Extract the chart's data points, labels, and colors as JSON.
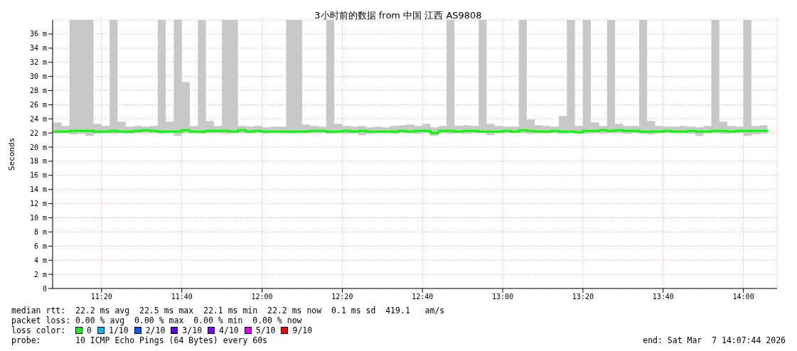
{
  "chart_data": {
    "type": "step",
    "title": "3小时前的数据 from 中国 江西 AS9808",
    "ylabel": "Seconds",
    "x": [
      11.1333,
      11.1667,
      11.2,
      11.2333,
      11.2667,
      11.3,
      11.3333,
      11.3667,
      11.4,
      11.4333,
      11.4667,
      11.5,
      11.5333,
      11.5667,
      11.6,
      11.6333,
      11.6667,
      11.7,
      11.7333,
      11.7667,
      11.8,
      11.8333,
      11.8667,
      11.9,
      11.9333,
      11.9667,
      12.0,
      12.0333,
      12.0667,
      12.1,
      12.1333,
      12.1667,
      12.2,
      12.2333,
      12.2667,
      12.3,
      12.3333,
      12.3667,
      12.4,
      12.4333,
      12.4667,
      12.5,
      12.5333,
      12.5667,
      12.6,
      12.6333,
      12.6667,
      12.7,
      12.7333,
      12.7667,
      12.8,
      12.8333,
      12.8667,
      12.9,
      12.9333,
      12.9667,
      13.0,
      13.0333,
      13.0667,
      13.1,
      13.1333,
      13.1667,
      13.2,
      13.2333,
      13.2667,
      13.3,
      13.3333,
      13.3667,
      13.4,
      13.4333,
      13.4667,
      13.5,
      13.5333,
      13.5667,
      13.6,
      13.6333,
      13.6667,
      13.7,
      13.7333,
      13.7667,
      13.8,
      13.8333,
      13.8667,
      13.9,
      13.9333,
      13.9667,
      14.0,
      14.0333,
      14.0667,
      14.1
    ],
    "series": [
      {
        "name": "0",
        "color": "#00ff00",
        "values": [
          22.2,
          22.2,
          22.3,
          22.3,
          22.3,
          22.2,
          22.2,
          22.3,
          22.2,
          22.2,
          22.3,
          22.4,
          22.3,
          22.2,
          22.2,
          22.2,
          22.4,
          22.2,
          22.2,
          22.3,
          22.3,
          22.3,
          22.2,
          22.4,
          22.2,
          22.3,
          22.2,
          22.2,
          22.2,
          22.2,
          22.2,
          22.2,
          22.3,
          22.3,
          22.2,
          22.2,
          22.3,
          22.2,
          22.3,
          22.2,
          22.2,
          22.2,
          22.2,
          22.3,
          22.2,
          22.3,
          22.3,
          22.0,
          22.3,
          22.3,
          22.2,
          22.3,
          22.3,
          22.2,
          22.2,
          22.2,
          22.3,
          22.2,
          22.4,
          22.3,
          22.2,
          22.2,
          22.3,
          22.2,
          22.2,
          22.1,
          22.3,
          22.3,
          22.4,
          22.3,
          22.4,
          22.3,
          22.3,
          22.2,
          22.2,
          22.2,
          22.3,
          22.2,
          22.2,
          22.3,
          22.2,
          22.2,
          22.3,
          22.3,
          22.2,
          22.3,
          22.3,
          22.3,
          22.3,
          22.2
        ],
        "lower": [
          22.0,
          22.0,
          21.8,
          21.9,
          21.6,
          21.9,
          22.0,
          21.9,
          22.0,
          21.9,
          22.0,
          22.0,
          22.0,
          21.9,
          22.0,
          21.6,
          22.0,
          22.0,
          21.9,
          22.0,
          22.0,
          21.9,
          22.0,
          22.0,
          22.0,
          22.0,
          21.9,
          22.0,
          22.0,
          21.9,
          22.0,
          22.0,
          22.0,
          22.0,
          21.9,
          22.0,
          21.9,
          22.0,
          21.7,
          21.9,
          22.0,
          22.0,
          21.9,
          22.0,
          22.0,
          21.9,
          22.0,
          21.6,
          22.0,
          21.9,
          22.0,
          21.9,
          22.0,
          22.0,
          21.7,
          22.0,
          22.0,
          22.0,
          22.0,
          21.9,
          22.0,
          22.0,
          22.0,
          21.9,
          22.0,
          22.0,
          21.9,
          22.0,
          21.9,
          22.0,
          22.0,
          21.9,
          22.0,
          21.9,
          21.8,
          22.0,
          22.0,
          22.0,
          22.0,
          21.9,
          21.6,
          22.0,
          22.0,
          21.9,
          22.0,
          22.0,
          21.6,
          21.8,
          21.9,
          22.0
        ],
        "upper": [
          23.5,
          23.0,
          38,
          38,
          38,
          23.3,
          23.0,
          38,
          23.6,
          22.9,
          23.0,
          22.9,
          23.0,
          38,
          23.6,
          38,
          29.2,
          23.0,
          38,
          23.7,
          23.0,
          38,
          38,
          23.0,
          22.9,
          23.0,
          22.8,
          22.9,
          22.9,
          38,
          38,
          23.2,
          23.0,
          22.9,
          38,
          23.3,
          23.0,
          22.9,
          23.0,
          22.8,
          22.9,
          22.8,
          23.0,
          23.1,
          23.2,
          23.0,
          23.3,
          22.8,
          23.0,
          38,
          23.0,
          23.1,
          23.0,
          38,
          23.3,
          23.0,
          22.9,
          22.9,
          38,
          23.9,
          23.1,
          23.0,
          22.9,
          24.4,
          38,
          23.0,
          38,
          23.5,
          23.0,
          38,
          23.3,
          23.0,
          23.0,
          38,
          23.7,
          23.0,
          22.9,
          22.9,
          23.0,
          22.9,
          22.8,
          23.0,
          38,
          23.6,
          23.0,
          22.9,
          38,
          23.0,
          23.1,
          24.2
        ]
      },
      {
        "name": "1/10",
        "color": "#00b8ff",
        "values": [
          null,
          null,
          null,
          null,
          null,
          null,
          null,
          null,
          null,
          null,
          null,
          null,
          null,
          null,
          null,
          null,
          null,
          null,
          null,
          null,
          null,
          null,
          null,
          null,
          null,
          null,
          null,
          null,
          null,
          null,
          null,
          null,
          null,
          null,
          null,
          null,
          null,
          null,
          null,
          null,
          null,
          null,
          null,
          null,
          null,
          null,
          null,
          null,
          null,
          null,
          null,
          null,
          null,
          null,
          null,
          null,
          null,
          null,
          null,
          null,
          null,
          null,
          null,
          null,
          null,
          null,
          null,
          null,
          null,
          null,
          null,
          null,
          null,
          null,
          null,
          null,
          null,
          null,
          null,
          null,
          null,
          null,
          null,
          null,
          null,
          null,
          null,
          null,
          null,
          null
        ]
      },
      {
        "name": "2/10",
        "color": "#0059ff",
        "values": [
          null,
          null,
          null,
          null,
          null,
          null,
          null,
          null,
          null,
          null,
          null,
          null,
          null,
          null,
          null,
          null,
          null,
          null,
          null,
          null,
          null,
          null,
          null,
          null,
          null,
          null,
          null,
          null,
          null,
          null,
          null,
          null,
          null,
          null,
          null,
          null,
          null,
          null,
          null,
          null,
          null,
          null,
          null,
          null,
          null,
          null,
          null,
          null,
          null,
          null,
          null,
          null,
          null,
          null,
          null,
          null,
          null,
          null,
          null,
          null,
          null,
          null,
          null,
          null,
          null,
          null,
          null,
          null,
          null,
          null,
          null,
          null,
          null,
          null,
          null,
          null,
          null,
          null,
          null,
          null,
          null,
          null,
          null,
          null,
          null,
          null,
          null,
          null,
          null,
          null
        ]
      },
      {
        "name": "3/10",
        "color": "#5e00ff",
        "values": [
          null,
          null,
          null,
          null,
          null,
          null,
          null,
          null,
          null,
          null,
          null,
          null,
          null,
          null,
          null,
          null,
          null,
          null,
          null,
          null,
          null,
          null,
          null,
          null,
          null,
          null,
          null,
          null,
          null,
          null,
          null,
          null,
          null,
          null,
          null,
          null,
          null,
          null,
          null,
          null,
          null,
          null,
          null,
          null,
          null,
          null,
          null,
          null,
          null,
          null,
          null,
          null,
          null,
          null,
          null,
          null,
          null,
          null,
          null,
          null,
          null,
          null,
          null,
          null,
          null,
          null,
          null,
          null,
          null,
          null,
          null,
          null,
          null,
          null,
          null,
          null,
          null,
          null,
          null,
          null,
          null,
          null,
          null,
          null,
          null,
          null,
          null,
          null,
          null,
          null
        ]
      },
      {
        "name": "4/10",
        "color": "#7e00ff",
        "values": [
          null,
          null,
          null,
          null,
          null,
          null,
          null,
          null,
          null,
          null,
          null,
          null,
          null,
          null,
          null,
          null,
          null,
          null,
          null,
          null,
          null,
          null,
          null,
          null,
          null,
          null,
          null,
          null,
          null,
          null,
          null,
          null,
          null,
          null,
          null,
          null,
          null,
          null,
          null,
          null,
          null,
          null,
          null,
          null,
          null,
          null,
          null,
          null,
          null,
          null,
          null,
          null,
          null,
          null,
          null,
          null,
          null,
          null,
          null,
          null,
          null,
          null,
          null,
          null,
          null,
          null,
          null,
          null,
          null,
          null,
          null,
          null,
          null,
          null,
          null,
          null,
          null,
          null,
          null,
          null,
          null,
          null,
          null,
          null,
          null,
          null,
          null,
          null,
          null,
          null
        ]
      },
      {
        "name": "5/10",
        "color": "#dd00ff",
        "values": [
          null,
          null,
          null,
          null,
          null,
          null,
          null,
          null,
          null,
          null,
          null,
          null,
          null,
          null,
          null,
          null,
          null,
          null,
          null,
          null,
          null,
          null,
          null,
          null,
          null,
          null,
          null,
          null,
          null,
          null,
          null,
          null,
          null,
          null,
          null,
          null,
          null,
          null,
          null,
          null,
          null,
          null,
          null,
          null,
          null,
          null,
          null,
          null,
          null,
          null,
          null,
          null,
          null,
          null,
          null,
          null,
          null,
          null,
          null,
          null,
          null,
          null,
          null,
          null,
          null,
          null,
          null,
          null,
          null,
          null,
          null,
          null,
          null,
          null,
          null,
          null,
          null,
          null,
          null,
          null,
          null,
          null,
          null,
          null,
          null,
          null,
          null,
          null,
          null,
          null
        ]
      },
      {
        "name": "9/10",
        "color": "#ff0000",
        "values": [
          null,
          null,
          null,
          null,
          null,
          null,
          null,
          null,
          null,
          null,
          null,
          null,
          null,
          null,
          null,
          null,
          null,
          null,
          null,
          null,
          null,
          null,
          null,
          null,
          null,
          null,
          null,
          null,
          null,
          null,
          null,
          null,
          null,
          null,
          null,
          null,
          null,
          null,
          null,
          null,
          null,
          null,
          null,
          null,
          null,
          null,
          null,
          null,
          null,
          null,
          null,
          null,
          null,
          null,
          null,
          null,
          null,
          null,
          null,
          null,
          null,
          null,
          null,
          null,
          null,
          null,
          null,
          null,
          null,
          null,
          null,
          null,
          null,
          null,
          null,
          null,
          null,
          null,
          null,
          null,
          null,
          null,
          null,
          null,
          null,
          null,
          null,
          null,
          null,
          null
        ]
      }
    ],
    "legend": "bottom",
    "legend_title": "loss color:",
    "grid": true,
    "xlim": [
      11.13,
      14.14
    ],
    "xticks": [
      {
        "value": 11.3333,
        "label": "11:20"
      },
      {
        "value": 11.6667,
        "label": "11:40"
      },
      {
        "value": 12.0,
        "label": "12:00"
      },
      {
        "value": 12.3333,
        "label": "12:20"
      },
      {
        "value": 12.6667,
        "label": "12:40"
      },
      {
        "value": 13.0,
        "label": "13:00"
      },
      {
        "value": 13.3333,
        "label": "13:20"
      },
      {
        "value": 13.6667,
        "label": "13:40"
      },
      {
        "value": 14.0,
        "label": "14:00"
      }
    ],
    "ylim": [
      0,
      38
    ],
    "yticks": [
      0,
      {
        "value": 2,
        "label": "2 m"
      },
      {
        "value": 4,
        "label": "4 m"
      },
      {
        "value": 6,
        "label": "6 m"
      },
      {
        "value": 8,
        "label": "8 m"
      },
      {
        "value": 10,
        "label": "10 m"
      },
      {
        "value": 12,
        "label": "12 m"
      },
      {
        "value": 14,
        "label": "14 m"
      },
      {
        "value": 16,
        "label": "16 m"
      },
      {
        "value": 18,
        "label": "18 m"
      },
      {
        "value": 20,
        "label": "20 m"
      },
      {
        "value": 22,
        "label": "22 m"
      },
      {
        "value": 24,
        "label": "24 m"
      },
      {
        "value": 26,
        "label": "26 m"
      },
      {
        "value": 28,
        "label": "28 m"
      },
      {
        "value": 30,
        "label": "30 m"
      },
      {
        "value": 32,
        "label": "32 m"
      },
      {
        "value": 34,
        "label": "34 m"
      },
      {
        "value": 36,
        "label": "36 m"
      }
    ],
    "annotations": [
      "median rtt:  22.2 ms avg  22.5 ms max  22.1 ms min  22.2 ms now  0.1 ms sd  419.1   am/s",
      "packet loss: 0.00 % avg  0.00 % max  0.00 % min  0.00 % now",
      "probe:       10 ICMP Echo Pings (64 Bytes) every 60s",
      "end: Sat Mar  7 14:07:44 2026"
    ]
  }
}
